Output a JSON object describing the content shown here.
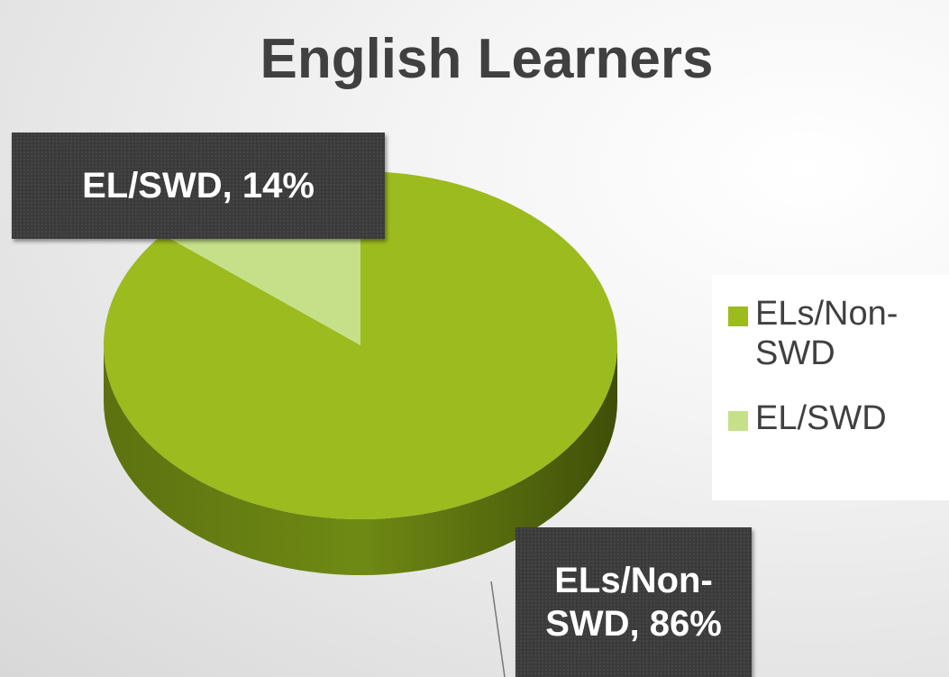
{
  "chart_data": {
    "type": "pie",
    "title": "English Learners",
    "categories": [
      "ELs/Non-SWD",
      "EL/SWD"
    ],
    "values": [
      86,
      14
    ],
    "value_labels": [
      "ELs/Non-SWD, 86%",
      "EL/SWD, 14%"
    ],
    "colors": [
      "#9bbb1e",
      "#c6e08a"
    ],
    "legend": "right"
  }
}
